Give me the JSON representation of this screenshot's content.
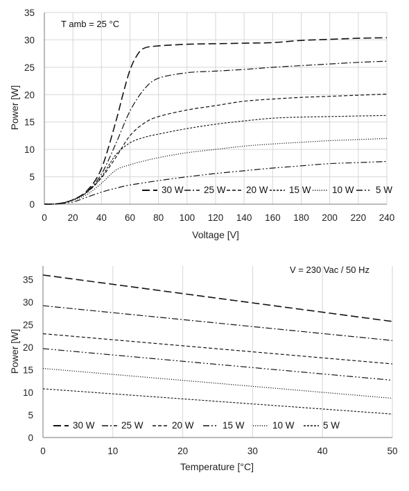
{
  "chart_data": [
    {
      "type": "line",
      "title": "",
      "annotation": "T amb = 25 °C",
      "xlabel": "Voltage  [V]",
      "ylabel": "Power [W]",
      "xlim": [
        0,
        240
      ],
      "ylim": [
        0,
        35
      ],
      "xticks": [
        0,
        20,
        40,
        60,
        80,
        100,
        120,
        140,
        160,
        180,
        200,
        220,
        240
      ],
      "yticks": [
        0,
        5,
        10,
        15,
        20,
        25,
        30,
        35
      ],
      "grid": "on",
      "legend_position": "bottom-right",
      "series": [
        {
          "name": "30 W",
          "dash": "long-dash",
          "points": [
            [
              0,
              0
            ],
            [
              10,
              0.1
            ],
            [
              20,
              0.8
            ],
            [
              30,
              2.5
            ],
            [
              40,
              6.5
            ],
            [
              50,
              15
            ],
            [
              55,
              20
            ],
            [
              60,
              24.5
            ],
            [
              65,
              27.2
            ],
            [
              70,
              28.5
            ],
            [
              80,
              28.9
            ],
            [
              100,
              29.2
            ],
            [
              120,
              29.3
            ],
            [
              140,
              29.4
            ],
            [
              160,
              29.5
            ],
            [
              180,
              29.9
            ],
            [
              200,
              30.1
            ],
            [
              220,
              30.3
            ],
            [
              240,
              30.4
            ]
          ]
        },
        {
          "name": "25 W",
          "dash": "dash-dot",
          "points": [
            [
              0,
              0
            ],
            [
              10,
              0.1
            ],
            [
              20,
              0.8
            ],
            [
              30,
              2.3
            ],
            [
              40,
              5.5
            ],
            [
              50,
              11
            ],
            [
              60,
              17
            ],
            [
              70,
              21
            ],
            [
              80,
              23
            ],
            [
              100,
              24.0
            ],
            [
              120,
              24.3
            ],
            [
              140,
              24.6
            ],
            [
              160,
              25.0
            ],
            [
              180,
              25.3
            ],
            [
              200,
              25.6
            ],
            [
              220,
              25.9
            ],
            [
              240,
              26.1
            ]
          ]
        },
        {
          "name": "20 W",
          "dash": "short-dash",
          "points": [
            [
              0,
              0
            ],
            [
              10,
              0.1
            ],
            [
              20,
              0.8
            ],
            [
              30,
              2.2
            ],
            [
              40,
              4.8
            ],
            [
              50,
              8.5
            ],
            [
              60,
              12.5
            ],
            [
              70,
              14.8
            ],
            [
              80,
              16
            ],
            [
              100,
              17.2
            ],
            [
              120,
              18
            ],
            [
              140,
              18.8
            ],
            [
              160,
              19.2
            ],
            [
              180,
              19.5
            ],
            [
              200,
              19.7
            ],
            [
              220,
              19.9
            ],
            [
              240,
              20.1
            ]
          ]
        },
        {
          "name": "15 W",
          "dash": "dense-dash",
          "points": [
            [
              0,
              0
            ],
            [
              10,
              0.1
            ],
            [
              20,
              0.8
            ],
            [
              30,
              2.2
            ],
            [
              40,
              5
            ],
            [
              50,
              9
            ],
            [
              60,
              11.2
            ],
            [
              70,
              12.2
            ],
            [
              80,
              12.8
            ],
            [
              100,
              13.8
            ],
            [
              120,
              14.6
            ],
            [
              140,
              15.2
            ],
            [
              160,
              15.7
            ],
            [
              180,
              15.9
            ],
            [
              200,
              16.0
            ],
            [
              220,
              16.1
            ],
            [
              240,
              16.2
            ]
          ]
        },
        {
          "name": "10 W",
          "dash": "dotted",
          "points": [
            [
              0,
              0
            ],
            [
              10,
              0.1
            ],
            [
              20,
              0.7
            ],
            [
              30,
              1.8
            ],
            [
              40,
              3.8
            ],
            [
              50,
              6.2
            ],
            [
              60,
              7.2
            ],
            [
              70,
              7.9
            ],
            [
              80,
              8.5
            ],
            [
              100,
              9.4
            ],
            [
              120,
              10.0
            ],
            [
              140,
              10.6
            ],
            [
              160,
              11.0
            ],
            [
              180,
              11.3
            ],
            [
              200,
              11.6
            ],
            [
              220,
              11.8
            ],
            [
              240,
              12.0
            ]
          ]
        },
        {
          "name": "5 W",
          "dash": "dash-dot-dot",
          "points": [
            [
              0,
              0
            ],
            [
              10,
              0.1
            ],
            [
              20,
              0.4
            ],
            [
              30,
              1.3
            ],
            [
              40,
              2.2
            ],
            [
              50,
              2.9
            ],
            [
              60,
              3.5
            ],
            [
              80,
              4.3
            ],
            [
              100,
              5.0
            ],
            [
              120,
              5.6
            ],
            [
              140,
              6.1
            ],
            [
              160,
              6.6
            ],
            [
              180,
              7.0
            ],
            [
              200,
              7.4
            ],
            [
              220,
              7.6
            ],
            [
              240,
              7.8
            ]
          ]
        }
      ],
      "legend": [
        "30 W",
        "25 W",
        "20 W",
        "15 W",
        "10 W",
        "5 W"
      ]
    },
    {
      "type": "line",
      "title": "",
      "annotation": "V = 230 Vac  / 50 Hz",
      "xlabel": "Temperature [°C]",
      "ylabel": "Power [W]",
      "xlim": [
        0,
        50
      ],
      "ylim": [
        0,
        38
      ],
      "xticks": [
        0,
        10,
        20,
        30,
        40,
        50
      ],
      "yticks": [
        0,
        5,
        10,
        15,
        20,
        25,
        30,
        35
      ],
      "grid": "vertical",
      "legend_position": "bottom-left",
      "series": [
        {
          "name": "30 W",
          "dash": "long-dash",
          "points": [
            [
              0,
              36
            ],
            [
              50,
              25.7
            ]
          ]
        },
        {
          "name": "25 W",
          "dash": "dash-dot",
          "points": [
            [
              0,
              29.2
            ],
            [
              50,
              21.5
            ]
          ]
        },
        {
          "name": "20 W",
          "dash": "short-dash",
          "points": [
            [
              0,
              23
            ],
            [
              50,
              16.3
            ]
          ]
        },
        {
          "name": "15 W",
          "dash": "dash-dot-dot",
          "points": [
            [
              0,
              19.7
            ],
            [
              50,
              12.7
            ]
          ]
        },
        {
          "name": "10 W",
          "dash": "dotted",
          "points": [
            [
              0,
              15.3
            ],
            [
              50,
              8.7
            ]
          ]
        },
        {
          "name": "5 W",
          "dash": "dense-dash",
          "points": [
            [
              0,
              10.8
            ],
            [
              50,
              5.2
            ]
          ]
        }
      ],
      "legend": [
        "30 W",
        "25 W",
        "20 W",
        "15 W",
        "10 W",
        "5 W"
      ]
    }
  ]
}
